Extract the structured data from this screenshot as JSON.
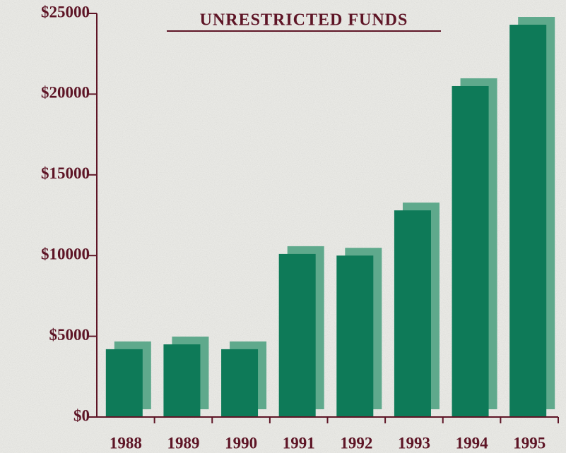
{
  "chart_data": {
    "type": "bar",
    "title": "UNRESTRICTED FUNDS",
    "categories": [
      "1988",
      "1989",
      "1990",
      "1991",
      "1992",
      "1993",
      "1994",
      "1995"
    ],
    "values": [
      4200,
      4500,
      4200,
      10100,
      10000,
      12800,
      20500,
      24300
    ],
    "color": "#0e7a58",
    "shadow_color": "#5fa98c",
    "ylim": [
      0,
      25000
    ],
    "yticks": [
      {
        "value": 0,
        "label": "$0"
      },
      {
        "value": 5000,
        "label": "$5000"
      },
      {
        "value": 10000,
        "label": "$10000"
      },
      {
        "value": 15000,
        "label": "$15000"
      },
      {
        "value": 20000,
        "label": "$20000"
      },
      {
        "value": 25000,
        "label": "$25000"
      }
    ],
    "grid": false
  }
}
